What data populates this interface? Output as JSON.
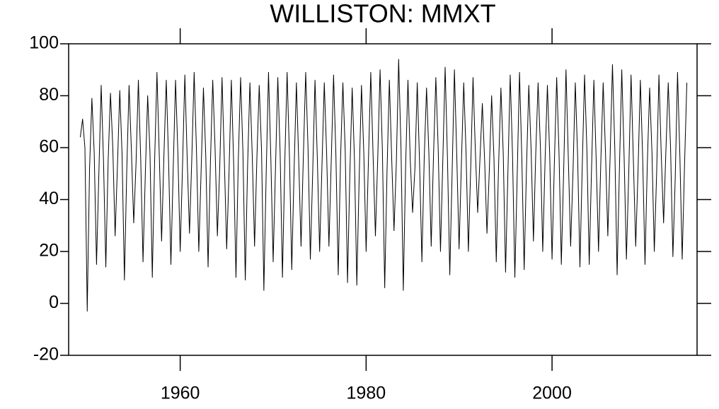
{
  "chart_data": {
    "type": "line",
    "title": "WILLISTON: MMXT",
    "x": [
      1949.25,
      1949.5,
      1949.75,
      1950,
      1950.25,
      1950.5,
      1950.75,
      1951,
      1951.25,
      1951.5,
      1951.75,
      1952,
      1952.25,
      1952.5,
      1952.75,
      1953,
      1953.25,
      1953.5,
      1953.75,
      1954,
      1954.25,
      1954.5,
      1954.75,
      1955,
      1955.25,
      1955.5,
      1955.75,
      1956,
      1956.25,
      1956.5,
      1956.75,
      1957,
      1957.25,
      1957.5,
      1957.75,
      1958,
      1958.25,
      1958.5,
      1958.75,
      1959,
      1959.25,
      1959.5,
      1959.75,
      1960,
      1960.25,
      1960.5,
      1960.75,
      1961,
      1961.25,
      1961.5,
      1961.75,
      1962,
      1962.25,
      1962.5,
      1962.75,
      1963,
      1963.25,
      1963.5,
      1963.75,
      1964,
      1964.25,
      1964.5,
      1964.75,
      1965,
      1965.25,
      1965.5,
      1965.75,
      1966,
      1966.25,
      1966.5,
      1966.75,
      1967,
      1967.25,
      1967.5,
      1967.75,
      1968,
      1968.25,
      1968.5,
      1968.75,
      1969,
      1969.25,
      1969.5,
      1969.75,
      1970,
      1970.25,
      1970.5,
      1970.75,
      1971,
      1971.25,
      1971.5,
      1971.75,
      1972,
      1972.25,
      1972.5,
      1972.75,
      1973,
      1973.25,
      1973.5,
      1973.75,
      1974,
      1974.25,
      1974.5,
      1974.75,
      1975,
      1975.25,
      1975.5,
      1975.75,
      1976,
      1976.25,
      1976.5,
      1976.75,
      1977,
      1977.25,
      1977.5,
      1977.75,
      1978,
      1978.25,
      1978.5,
      1978.75,
      1979,
      1979.25,
      1979.5,
      1979.75,
      1980,
      1980.25,
      1980.5,
      1980.75,
      1981,
      1981.25,
      1981.5,
      1981.75,
      1982,
      1982.25,
      1982.5,
      1982.75,
      1983,
      1983.25,
      1983.5,
      1983.75,
      1984,
      1984.25,
      1984.5,
      1984.75,
      1985,
      1985.25,
      1985.5,
      1985.75,
      1986,
      1986.25,
      1986.5,
      1986.75,
      1987,
      1987.25,
      1987.5,
      1987.75,
      1988,
      1988.25,
      1988.5,
      1988.75,
      1989,
      1989.25,
      1989.5,
      1989.75,
      1990,
      1990.25,
      1990.5,
      1990.75,
      1991,
      1991.25,
      1991.5,
      1991.75,
      1992,
      1992.25,
      1992.5,
      1992.75,
      1993,
      1993.25,
      1993.5,
      1993.75,
      1994,
      1994.25,
      1994.5,
      1994.75,
      1995,
      1995.25,
      1995.5,
      1995.75,
      1996,
      1996.25,
      1996.5,
      1996.75,
      1997,
      1997.25,
      1997.5,
      1997.75,
      1998,
      1998.25,
      1998.5,
      1998.75,
      1999,
      1999.25,
      1999.5,
      1999.75,
      2000,
      2000.25,
      2000.5,
      2000.75,
      2001,
      2001.25,
      2001.5,
      2001.75,
      2002,
      2002.25,
      2002.5,
      2002.75,
      2003,
      2003.25,
      2003.5,
      2003.75,
      2004,
      2004.25,
      2004.5,
      2004.75,
      2005,
      2005.25,
      2005.5,
      2005.75,
      2006,
      2006.25,
      2006.5,
      2006.75,
      2007,
      2007.25,
      2007.5,
      2007.75,
      2008,
      2008.25,
      2008.5,
      2008.75,
      2009,
      2009.25,
      2009.5,
      2009.75,
      2010,
      2010.25,
      2010.5,
      2010.75,
      2011,
      2011.25,
      2011.5,
      2011.75,
      2012,
      2012.25,
      2012.5,
      2012.75,
      2013,
      2013.25,
      2013.5,
      2013.75,
      2014,
      2014.25,
      2014.5
    ],
    "values": [
      64,
      71,
      60,
      -3,
      52,
      79,
      58,
      15,
      50,
      84,
      55,
      14,
      55,
      81,
      60,
      26,
      53,
      82,
      57,
      9,
      51,
      84,
      59,
      31,
      54,
      86,
      56,
      16,
      50,
      80,
      58,
      10,
      55,
      89,
      57,
      24,
      57,
      86,
      55,
      15,
      52,
      86,
      58,
      20,
      53,
      88,
      56,
      27,
      56,
      89,
      59,
      20,
      51,
      83,
      57,
      14,
      54,
      86,
      60,
      26,
      52,
      87,
      55,
      21,
      50,
      86,
      54,
      10,
      55,
      87,
      58,
      9,
      53,
      85,
      57,
      22,
      56,
      84,
      59,
      5,
      50,
      89,
      56,
      16,
      52,
      87,
      58,
      10,
      54,
      89,
      57,
      13,
      51,
      85,
      55,
      22,
      57,
      89,
      60,
      17,
      50,
      86,
      56,
      20,
      53,
      85,
      58,
      22,
      55,
      88,
      57,
      11,
      56,
      85,
      59,
      8,
      50,
      83,
      55,
      7,
      48,
      84,
      58,
      20,
      55,
      89,
      57,
      26,
      56,
      90,
      59,
      6,
      51,
      86,
      56,
      28,
      54,
      94,
      60,
      5,
      53,
      86,
      55,
      35,
      52,
      85,
      54,
      16,
      56,
      83,
      58,
      22,
      57,
      87,
      60,
      20,
      55,
      91,
      56,
      11,
      50,
      90,
      57,
      21,
      54,
      85,
      58,
      20,
      52,
      87,
      59,
      35,
      56,
      77,
      55,
      27,
      51,
      80,
      56,
      16,
      53,
      83,
      58,
      12,
      50,
      88,
      57,
      10,
      49,
      89,
      56,
      13,
      52,
      84,
      59,
      24,
      58,
      85,
      60,
      20,
      55,
      84,
      57,
      17,
      54,
      87,
      58,
      15,
      51,
      90,
      56,
      22,
      50,
      85,
      57,
      14,
      53,
      88,
      59,
      15,
      52,
      86,
      55,
      20,
      55,
      85,
      58,
      26,
      57,
      92,
      60,
      11,
      52,
      90,
      57,
      17,
      50,
      88,
      55,
      22,
      51,
      86,
      56,
      15,
      54,
      83,
      58,
      20,
      50,
      88,
      57,
      31,
      59,
      85,
      60,
      18,
      48,
      89,
      57,
      17,
      53,
      85
    ],
    "color": "#000000",
    "xlim": [
      1948,
      2015.6
    ],
    "xticks": [
      1960,
      1980,
      2000
    ],
    "ylim": [
      -20,
      100
    ],
    "yticks": [
      -20,
      0,
      20,
      40,
      60,
      80,
      100
    ]
  }
}
